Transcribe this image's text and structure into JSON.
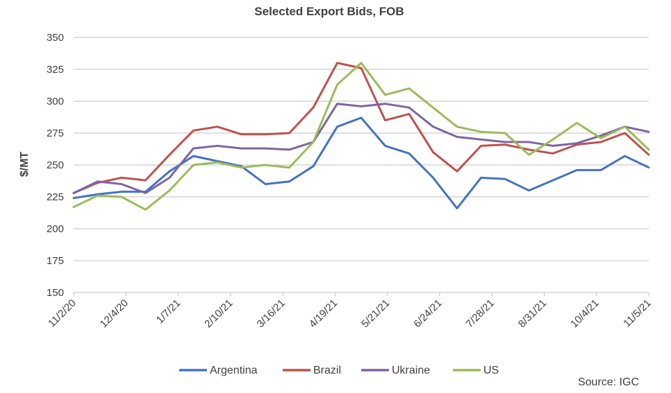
{
  "chart_data": {
    "type": "line",
    "title": "Selected Export Bids, FOB",
    "ylabel": "$/MT",
    "xlabel": "",
    "ylim": [
      150,
      350
    ],
    "yticks": [
      150,
      175,
      200,
      225,
      250,
      275,
      300,
      325,
      350
    ],
    "xticklabels": [
      "11/2/20",
      "12/4/20",
      "1/7/21",
      "2/10/21",
      "3/16/21",
      "4/19/21",
      "5/21/21",
      "6/24/21",
      "7/28/21",
      "8/31/21",
      "10/4/21",
      "11/5/21"
    ],
    "grid": "horizontal",
    "legend_position": "bottom",
    "source": "Source: IGC",
    "x": [
      "11/2/20",
      "11/16/20",
      "12/4/20",
      "12/18/20",
      "1/7/21",
      "1/21/21",
      "2/10/21",
      "2/24/21",
      "3/16/21",
      "3/30/21",
      "4/19/21",
      "5/3/21",
      "5/10/21",
      "5/21/21",
      "6/4/21",
      "6/24/21",
      "7/8/21",
      "7/28/21",
      "8/11/21",
      "8/31/21",
      "9/14/21",
      "10/4/21",
      "10/18/21",
      "11/5/21",
      "11/12/21"
    ],
    "series": [
      {
        "name": "Argentina",
        "color": "#4472C4",
        "values": [
          224,
          227,
          229,
          229,
          245,
          257,
          253,
          249,
          235,
          237,
          249,
          280,
          287,
          265,
          259,
          240,
          216,
          240,
          239,
          230,
          238,
          246,
          246,
          257,
          248
        ]
      },
      {
        "name": "Brazil",
        "color": "#C0504D",
        "values": [
          228,
          236,
          240,
          238,
          258,
          277,
          280,
          274,
          274,
          275,
          295,
          330,
          326,
          285,
          290,
          260,
          245,
          265,
          266,
          262,
          259,
          266,
          268,
          275,
          258
        ]
      },
      {
        "name": "Ukraine",
        "color": "#8064A2",
        "values": [
          228,
          237,
          235,
          228,
          240,
          263,
          265,
          263,
          263,
          262,
          268,
          298,
          296,
          298,
          295,
          280,
          272,
          270,
          268,
          268,
          265,
          267,
          273,
          280,
          276
        ]
      },
      {
        "name": "US",
        "color": "#9BBB59",
        "values": [
          217,
          226,
          225,
          215,
          230,
          250,
          252,
          248,
          250,
          248,
          268,
          313,
          330,
          305,
          310,
          295,
          280,
          276,
          275,
          258,
          270,
          283,
          271,
          280,
          262
        ]
      }
    ]
  }
}
